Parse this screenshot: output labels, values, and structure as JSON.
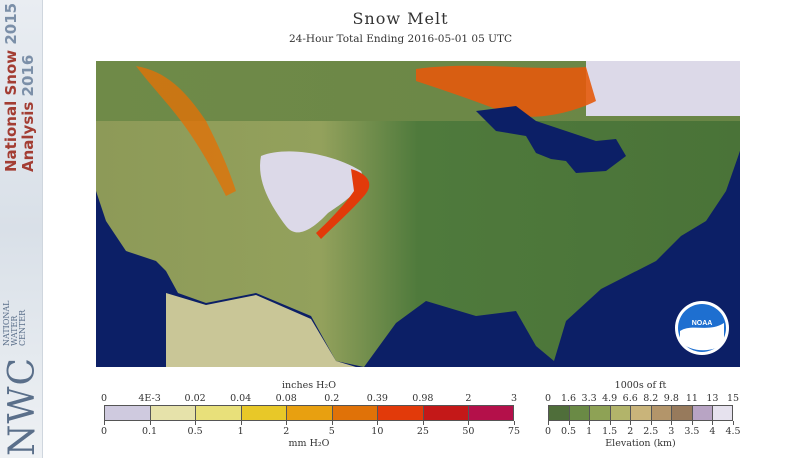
{
  "title": "Snow Melt",
  "subtitle": "24-Hour Total Ending 2016-05-01 05 UTC",
  "sidebar": {
    "line1_text": "National Snow ",
    "line1_year": "2015",
    "line2_text": "Analysis ",
    "line2_year": "2016",
    "org_small": [
      "NATIONAL",
      "WATER",
      "CENTER"
    ],
    "org_big": "NWC"
  },
  "noaa_logo": "NOAA",
  "melt_legend": {
    "title_top": "inches H₂O",
    "title_bottom": "mm H₂O",
    "inch_labels": [
      "0",
      "4E-3",
      "0.02",
      "0.04",
      "0.08",
      "0.2",
      "0.39",
      "0.98",
      "2",
      "3"
    ],
    "mm_labels": [
      "0",
      "0.1",
      "0.5",
      "1",
      "2",
      "5",
      "10",
      "25",
      "50",
      "75"
    ],
    "colors": [
      "#cfcadf",
      "#e6e2aa",
      "#e8e07a",
      "#e8c828",
      "#e8a010",
      "#e07208",
      "#e23a0a",
      "#c41818",
      "#b4104a"
    ]
  },
  "elev_legend": {
    "title_top": "1000s of ft",
    "title_bottom": "Elevation (km)",
    "ft_labels": [
      "0",
      "1.6",
      "3.3",
      "4.9",
      "6.6",
      "8.2",
      "9.8",
      "11",
      "13",
      "15"
    ],
    "km_labels": [
      "0",
      "0.5",
      "1",
      "1.5",
      "2",
      "2.5",
      "3",
      "3.5",
      "4",
      "4.5"
    ],
    "colors": [
      "#4f6e3a",
      "#6a8a45",
      "#8ea255",
      "#b2b46a",
      "#c9b47a",
      "#b3956a",
      "#977a5c",
      "#b8a4c4",
      "#e6e2ee"
    ]
  },
  "colors": {
    "ocean": "#0c1f66",
    "land_low": "#4f7a3c",
    "land_mid": "#8a9f56",
    "snow": "#d9d6e6",
    "melt_high": "#e23a0a",
    "canada": "#7a8f58"
  }
}
